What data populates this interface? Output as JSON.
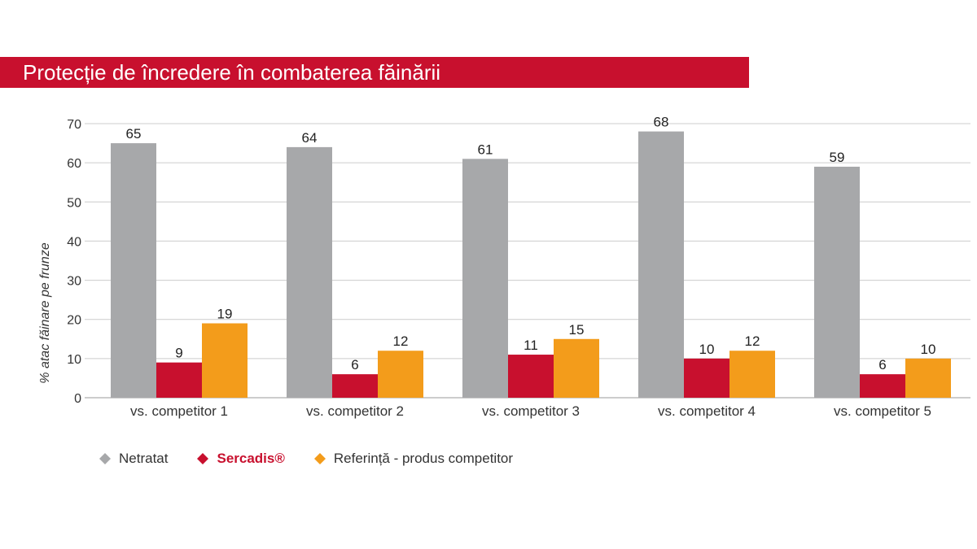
{
  "title": "Protecție de încredere în combaterea făinării",
  "colors": {
    "brand": "#c8102e",
    "netratat": "#a7a8aa",
    "sercadis": "#c8102e",
    "referinta": "#f39c1b",
    "grid": "#cccccc"
  },
  "legend": [
    {
      "label": "Netratat",
      "color": "#a7a8aa",
      "bold": false
    },
    {
      "label": "Sercadis®",
      "color": "#c8102e",
      "bold": true
    },
    {
      "label": "Referință - produs competitor",
      "color": "#f39c1b",
      "bold": false
    }
  ],
  "chart_data": {
    "type": "bar",
    "title": "",
    "xlabel": "",
    "ylabel": "% atac făinare pe frunze",
    "ylim": [
      0,
      70
    ],
    "yticks": [
      0,
      10,
      20,
      30,
      40,
      50,
      60,
      70
    ],
    "grid": true,
    "legend_position": "bottom-left",
    "categories": [
      "vs. competitor 1",
      "vs. competitor 2",
      "vs. competitor 3",
      "vs. competitor 4",
      "vs. competitor 5"
    ],
    "series": [
      {
        "name": "Netratat",
        "color": "#a7a8aa",
        "values": [
          65,
          64,
          61,
          68,
          59
        ]
      },
      {
        "name": "Sercadis®",
        "color": "#c8102e",
        "values": [
          9,
          6,
          11,
          10,
          6
        ]
      },
      {
        "name": "Referință - produs competitor",
        "color": "#f39c1b",
        "values": [
          19,
          12,
          15,
          12,
          10
        ]
      }
    ]
  }
}
